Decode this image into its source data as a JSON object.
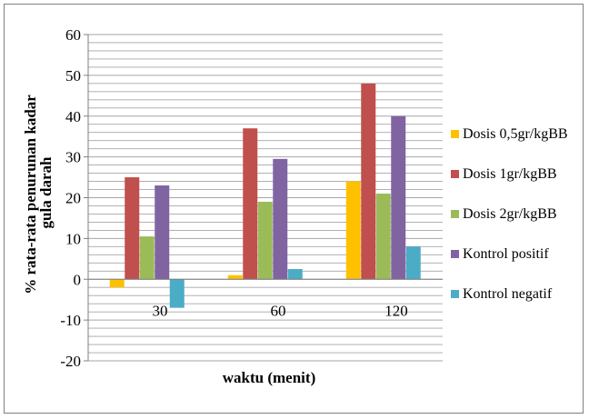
{
  "chart_data": {
    "type": "bar",
    "title": "",
    "xlabel": "waktu (menit)",
    "ylabel": "% rata-rata penurunan kadar gula darah",
    "categories": [
      "30",
      "60",
      "120"
    ],
    "ylim": [
      -20,
      60
    ],
    "yticks": [
      -20,
      -10,
      0,
      10,
      20,
      30,
      40,
      50,
      60
    ],
    "grid": true,
    "legend_position": "right",
    "series": [
      {
        "name": "Dosis 0,5gr/kgBB",
        "color": "#FFC000",
        "values": [
          -2,
          1,
          24
        ]
      },
      {
        "name": "Dosis 1gr/kgBB",
        "color": "#C0504D",
        "values": [
          25,
          37,
          48
        ]
      },
      {
        "name": "Dosis 2gr/kgBB",
        "color": "#9BBB59",
        "values": [
          10.5,
          19,
          21
        ]
      },
      {
        "name": "Kontrol positif",
        "color": "#8064A2",
        "values": [
          23,
          29.5,
          40
        ]
      },
      {
        "name": "Kontrol negatif",
        "color": "#4BACC6",
        "values": [
          -7,
          2.5,
          8
        ]
      }
    ]
  }
}
